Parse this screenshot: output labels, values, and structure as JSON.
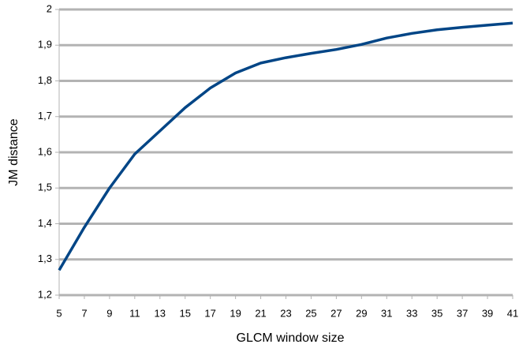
{
  "chart_data": {
    "type": "line",
    "x_label": "GLCM window size",
    "y_label": "JM distance",
    "x": [
      5,
      7,
      9,
      11,
      13,
      15,
      17,
      19,
      21,
      23,
      25,
      27,
      29,
      31,
      33,
      35,
      37,
      39,
      41
    ],
    "series": [
      {
        "color": "#004586",
        "values": [
          1.27,
          1.39,
          1.5,
          1.595,
          1.66,
          1.725,
          1.78,
          1.822,
          1.85,
          1.865,
          1.877,
          1.888,
          1.902,
          1.92,
          1.933,
          1.943,
          1.95,
          1.956,
          1.962
        ]
      }
    ],
    "xlim": [
      5,
      41
    ],
    "xticks": [
      5,
      7,
      9,
      11,
      13,
      15,
      17,
      19,
      21,
      23,
      25,
      27,
      29,
      31,
      33,
      35,
      37,
      39,
      41
    ],
    "ylim": [
      1.2,
      2
    ],
    "yticks": [
      {
        "value": 1.2,
        "label": "1,2"
      },
      {
        "value": 1.3,
        "label": "1,3"
      },
      {
        "value": 1.4,
        "label": "1,4"
      },
      {
        "value": 1.5,
        "label": "1,5"
      },
      {
        "value": 1.6,
        "label": "1,6"
      },
      {
        "value": 1.7,
        "label": "1,7"
      },
      {
        "value": 1.8,
        "label": "1,8"
      },
      {
        "value": 1.9,
        "label": "1,9"
      },
      2
    ],
    "grid": true
  }
}
